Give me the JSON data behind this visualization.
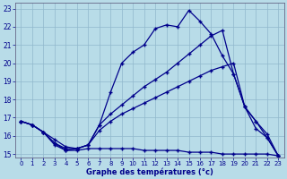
{
  "xlabel": "Graphe des températures (°c)",
  "bg_color": "#b8dce8",
  "line_color": "#00008b",
  "grid_color": "#90b8cc",
  "xlim": [
    -0.5,
    23.5
  ],
  "ylim": [
    14.8,
    23.3
  ],
  "yticks": [
    15,
    16,
    17,
    18,
    19,
    20,
    21,
    22,
    23
  ],
  "xticks": [
    0,
    1,
    2,
    3,
    4,
    5,
    6,
    7,
    8,
    9,
    10,
    11,
    12,
    13,
    14,
    15,
    16,
    17,
    18,
    19,
    20,
    21,
    22,
    23
  ],
  "line1_x": [
    0,
    1,
    2,
    3,
    4,
    5,
    6,
    7,
    8,
    9,
    10,
    11,
    12,
    13,
    14,
    15,
    16,
    17,
    18,
    19,
    20,
    21,
    22,
    23
  ],
  "line1_y": [
    16.8,
    16.6,
    16.2,
    15.8,
    15.4,
    15.3,
    15.5,
    16.6,
    18.4,
    20.0,
    20.6,
    21.0,
    21.9,
    22.1,
    22.0,
    22.9,
    22.3,
    21.6,
    20.4,
    19.4,
    17.6,
    16.4,
    15.9,
    14.9
  ],
  "line2_x": [
    0,
    1,
    2,
    3,
    4,
    5,
    6,
    7,
    8,
    9,
    10,
    11,
    12,
    13,
    14,
    15,
    16,
    17,
    18,
    19,
    20,
    21,
    22,
    23
  ],
  "line2_y": [
    16.8,
    16.6,
    16.2,
    15.6,
    15.2,
    15.3,
    15.5,
    16.6,
    17.2,
    17.7,
    18.2,
    18.7,
    19.1,
    19.5,
    20.0,
    20.5,
    21.0,
    21.5,
    21.8,
    19.4,
    17.6,
    16.8,
    16.1,
    14.9
  ],
  "line3_x": [
    0,
    1,
    2,
    3,
    4,
    5,
    6,
    7,
    8,
    9,
    10,
    11,
    12,
    13,
    14,
    15,
    16,
    17,
    18,
    19,
    20,
    21,
    22,
    23
  ],
  "line3_y": [
    16.8,
    16.6,
    16.2,
    15.6,
    15.3,
    15.3,
    15.5,
    16.3,
    16.8,
    17.2,
    17.5,
    17.8,
    18.1,
    18.4,
    18.7,
    19.0,
    19.3,
    19.6,
    19.8,
    20.0,
    17.6,
    16.8,
    15.9,
    14.9
  ],
  "line4_x": [
    0,
    1,
    2,
    3,
    4,
    5,
    6,
    7,
    8,
    9,
    10,
    11,
    12,
    13,
    14,
    15,
    16,
    17,
    18,
    19,
    20,
    21,
    22,
    23
  ],
  "line4_y": [
    16.8,
    16.6,
    16.2,
    15.5,
    15.2,
    15.2,
    15.3,
    15.3,
    15.3,
    15.3,
    15.3,
    15.2,
    15.2,
    15.2,
    15.2,
    15.1,
    15.1,
    15.1,
    15.0,
    15.0,
    15.0,
    15.0,
    15.0,
    14.9
  ]
}
